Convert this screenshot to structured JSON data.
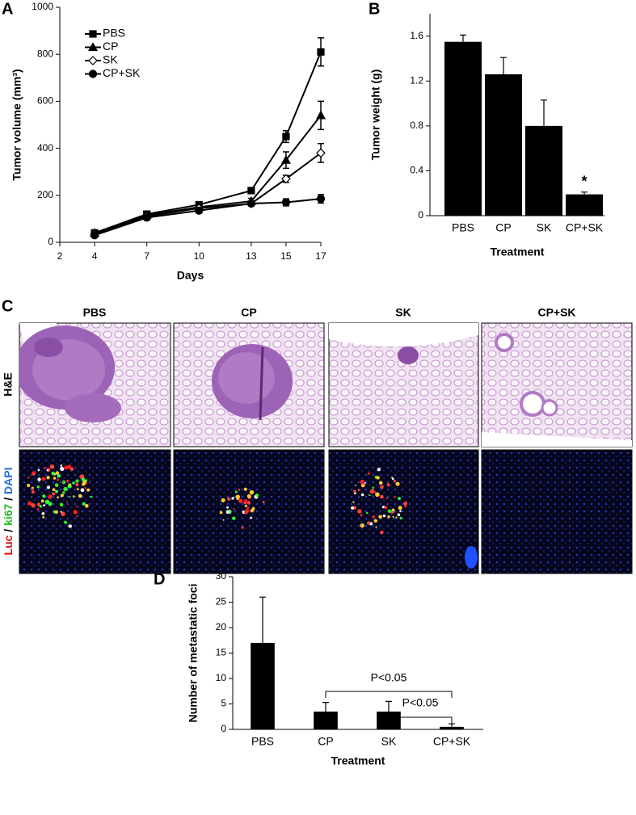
{
  "chart_data": [
    {
      "type": "line",
      "panel": "A",
      "y_label": "Tumor volume (mm³)",
      "x_label": "Days",
      "x": [
        4,
        7,
        10,
        13,
        15,
        17
      ],
      "xlim": [
        2,
        17
      ],
      "xticks": [
        2,
        4,
        7,
        10,
        13,
        15,
        17
      ],
      "ylim": [
        0,
        1000
      ],
      "yticks": [
        0,
        200,
        400,
        600,
        800,
        1000
      ],
      "series": [
        {
          "name": "PBS",
          "color": "#000000",
          "marker": "square",
          "values": [
            40,
            120,
            160,
            220,
            450,
            810
          ],
          "errors": [
            8,
            10,
            12,
            12,
            25,
            60
          ]
        },
        {
          "name": "CP",
          "color": "#000000",
          "marker": "triangle",
          "values": [
            40,
            115,
            150,
            175,
            350,
            540
          ],
          "errors": [
            8,
            10,
            10,
            12,
            35,
            60
          ]
        },
        {
          "name": "SK",
          "color": "#000000",
          "marker": "open-diamond",
          "values": [
            35,
            110,
            145,
            165,
            270,
            380
          ],
          "errors": [
            8,
            10,
            10,
            10,
            15,
            40
          ]
        },
        {
          "name": "CP+SK",
          "color": "#000000",
          "marker": "circle",
          "values": [
            30,
            105,
            135,
            165,
            170,
            185
          ],
          "errors": [
            8,
            10,
            10,
            10,
            15,
            18
          ]
        }
      ]
    },
    {
      "type": "bar",
      "panel": "B",
      "y_label": "Tumor weight (g)",
      "x_label": "Treatment",
      "categories": [
        "PBS",
        "CP",
        "SK",
        "CP+SK"
      ],
      "values": [
        1.55,
        1.26,
        0.8,
        0.19
      ],
      "errors": [
        0.06,
        0.15,
        0.23,
        0.02
      ],
      "color": "#000000",
      "ylim": [
        0,
        1.8
      ],
      "yticks": [
        0,
        0.4,
        0.8,
        1.2,
        1.6
      ],
      "annotations": [
        "*"
      ]
    },
    {
      "type": "bar",
      "panel": "D",
      "y_label": "Number of metastatic foci",
      "x_label": "Treatment",
      "categories": [
        "PBS",
        "CP",
        "SK",
        "CP+SK"
      ],
      "values": [
        17,
        3.5,
        3.5,
        0.5
      ],
      "errors": [
        9,
        1.8,
        2,
        0.6
      ],
      "color": "#000000",
      "ylim": [
        0,
        30
      ],
      "yticks": [
        0,
        5,
        10,
        15,
        20,
        25,
        30
      ],
      "annotations": [
        "P<0.05",
        "P<0.05"
      ]
    }
  ],
  "panel_c": {
    "label": "C",
    "columns": [
      "PBS",
      "CP",
      "SK",
      "CP+SK"
    ],
    "row_labels": [
      "H&E",
      {
        "parts": [
          "Luc",
          " / ",
          "ki67",
          " / ",
          "DAPI"
        ]
      }
    ]
  }
}
